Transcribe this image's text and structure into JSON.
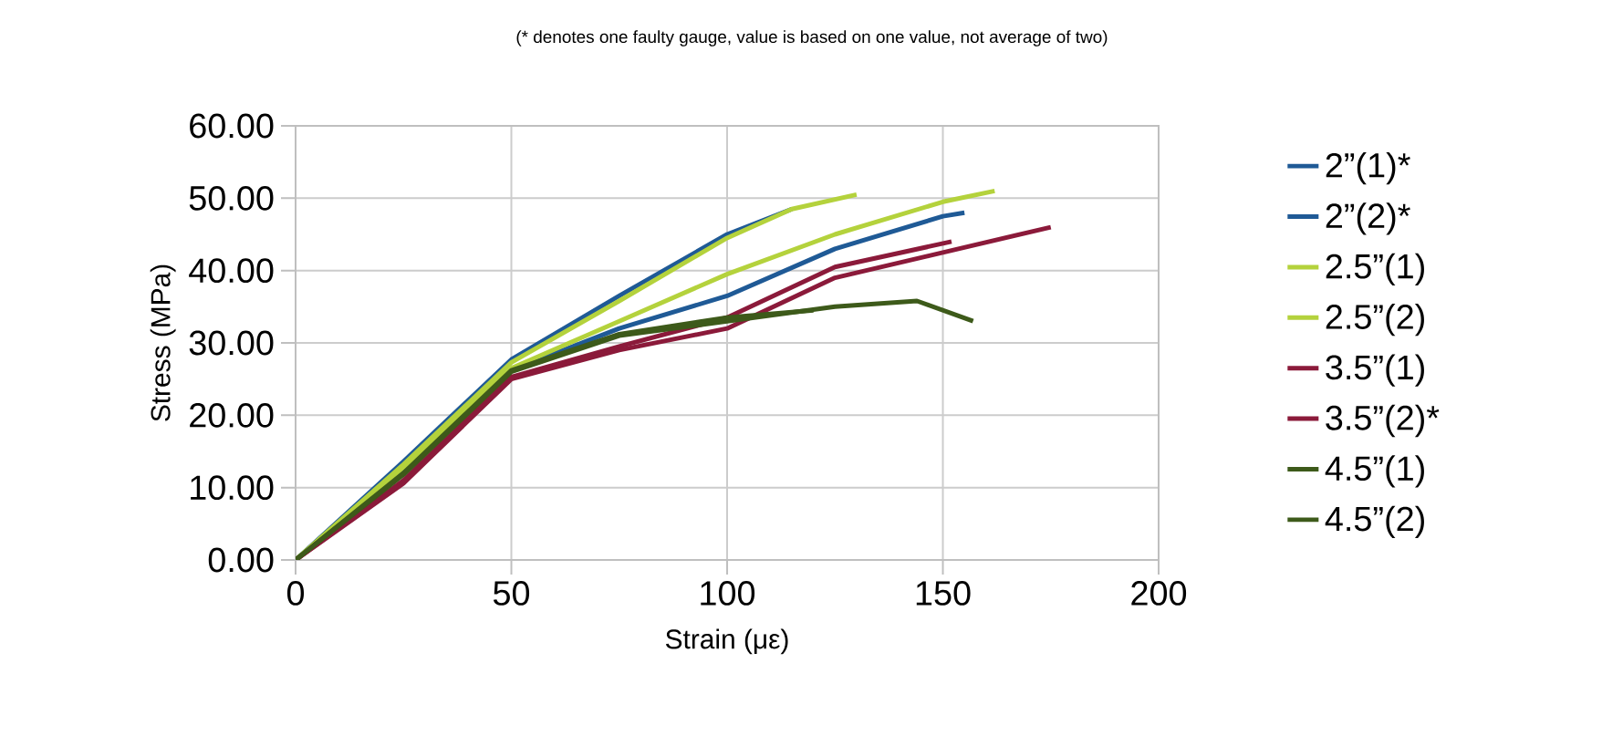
{
  "chart_data": {
    "type": "line",
    "subtitle": "(* denotes one faulty gauge, value is based on one value, not average of two)",
    "xlabel": "Strain (με)",
    "ylabel": "Stress (MPa)",
    "xlim": [
      0,
      200
    ],
    "xticks": [
      0,
      50,
      100,
      150,
      200
    ],
    "ylim": [
      0,
      60
    ],
    "yticks": [
      {
        "value": 0,
        "label": "0.00"
      },
      {
        "value": 10,
        "label": "10.00"
      },
      {
        "value": 20,
        "label": "20.00"
      },
      {
        "value": 30,
        "label": "30.00"
      },
      {
        "value": 40,
        "label": "40.00"
      },
      {
        "value": 50,
        "label": "50.00"
      },
      {
        "value": 60,
        "label": "60.00"
      }
    ],
    "grid": true,
    "legend": "right",
    "marker": "none",
    "line_style": "solid",
    "series": [
      {
        "name": "2”(1)*",
        "color": "#1f5a96",
        "x": [
          0,
          25,
          50,
          75,
          100,
          115
        ],
        "values": [
          0,
          13.6,
          27.7,
          36.5,
          45,
          48.5
        ]
      },
      {
        "name": "2”(2)*",
        "color": "#1f5a96",
        "x": [
          0,
          25,
          50,
          75,
          100,
          125,
          150,
          155
        ],
        "values": [
          0,
          12.5,
          26.2,
          32,
          36.5,
          43,
          47.5,
          48
        ]
      },
      {
        "name": "2.5”(1)",
        "color": "#b4d23c",
        "x": [
          0,
          25,
          50,
          75,
          100,
          115,
          130
        ],
        "values": [
          0,
          13.2,
          27.3,
          35.8,
          44.5,
          48.5,
          50.5
        ]
      },
      {
        "name": "2.5”(2)",
        "color": "#b4d23c",
        "x": [
          0,
          25,
          50,
          75,
          100,
          125,
          150,
          162
        ],
        "values": [
          0,
          12.8,
          26.5,
          33,
          39.5,
          45,
          49.5,
          51
        ]
      },
      {
        "name": "3.5”(1)",
        "color": "#8b1a3a",
        "x": [
          0,
          25,
          50,
          75,
          100,
          125,
          152
        ],
        "values": [
          0,
          11,
          25.3,
          29.5,
          33.5,
          40.5,
          44
        ]
      },
      {
        "name": "3.5”(2)*",
        "color": "#8b1a3a",
        "x": [
          0,
          25,
          50,
          75,
          100,
          125,
          150,
          175
        ],
        "values": [
          0,
          10.6,
          25,
          29,
          32,
          39,
          42.5,
          46
        ]
      },
      {
        "name": "4.5”(1)",
        "color": "#3d5a1a",
        "x": [
          0,
          25,
          50,
          75,
          100,
          125,
          144,
          157
        ],
        "values": [
          0,
          11.8,
          26,
          31,
          33,
          35,
          35.8,
          33
        ]
      },
      {
        "name": "4.5”(2)",
        "color": "#3d5a1a",
        "x": [
          0,
          25,
          50,
          75,
          100,
          120
        ],
        "values": [
          0,
          12,
          26.2,
          31.2,
          33.5,
          34.5
        ]
      }
    ]
  }
}
